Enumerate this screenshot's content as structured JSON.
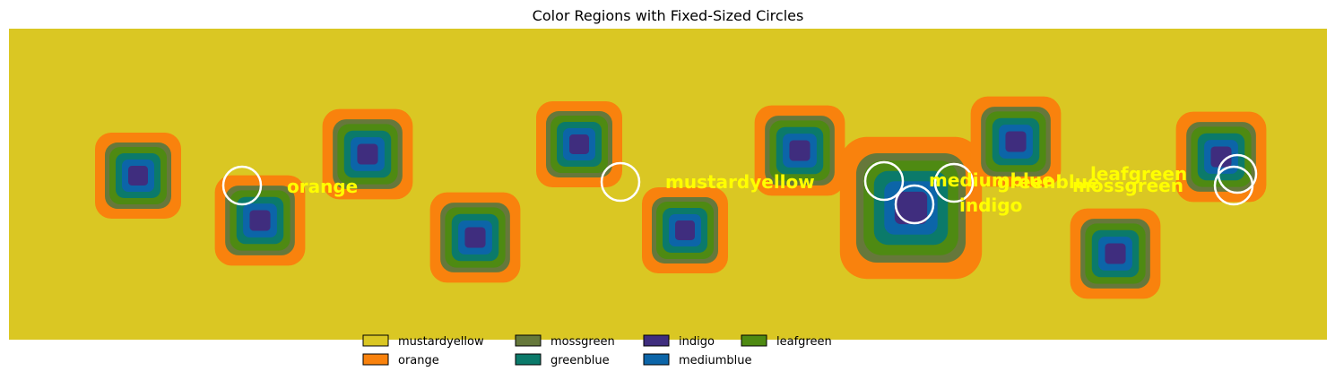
{
  "chart_data": {
    "type": "heatmap",
    "title": "Color Regions with Fixed-Sized Circles",
    "xlabel": "",
    "ylabel": "",
    "axis_visible": false,
    "grid": false,
    "legend_position": "bottom-center",
    "palette": {
      "mustardyellow": "#dac723",
      "orange": "#f9820d",
      "mossgreen": "#66783b",
      "greenblue": "#0b7a6a",
      "indigo": "#3f2d7e",
      "mediumblue": "#0c65a8",
      "leafgreen": "#4e8a12"
    },
    "legend": [
      {
        "name": "mustardyellow",
        "color": "#dac723"
      },
      {
        "name": "orange",
        "color": "#f9820d"
      },
      {
        "name": "mossgreen",
        "color": "#66783b"
      },
      {
        "name": "greenblue",
        "color": "#0b7a6a"
      },
      {
        "name": "indigo",
        "color": "#3f2d7e"
      },
      {
        "name": "mediumblue",
        "color": "#0c65a8"
      },
      {
        "name": "leafgreen",
        "color": "#4e8a12"
      }
    ],
    "circle_labels": [
      {
        "text": "orange",
        "color_region": "orange"
      },
      {
        "text": "mustardyellow",
        "color_region": "mustardyellow"
      },
      {
        "text": "mediumblue",
        "color_region": "mediumblue"
      },
      {
        "text": "indigo",
        "color_region": "indigo"
      },
      {
        "text": "greenblue",
        "color_region": "greenblue"
      },
      {
        "text": "leafgreen",
        "color_region": "leafgreen"
      },
      {
        "text": "mossgreen",
        "color_region": "mossgreen"
      }
    ]
  }
}
